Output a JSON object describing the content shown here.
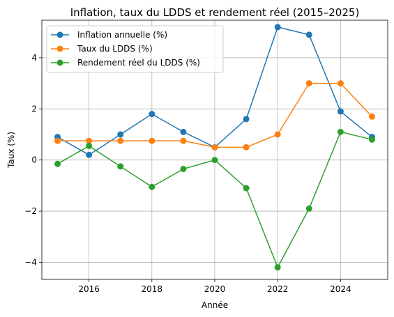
{
  "chart_data": {
    "type": "line",
    "title": "Inflation, taux du LDDS et rendement réel (2015–2025)",
    "xlabel": "Année",
    "ylabel": "Taux (%)",
    "x": [
      2015,
      2016,
      2017,
      2018,
      2019,
      2020,
      2021,
      2022,
      2023,
      2024,
      2025
    ],
    "xlim": [
      2014.5,
      2025.5
    ],
    "ylim": [
      -4.67,
      5.47
    ],
    "xticks": [
      2016,
      2018,
      2020,
      2022,
      2024
    ],
    "yticks": [
      -4,
      -2,
      0,
      2,
      4
    ],
    "xtick_labels": [
      "2016",
      "2018",
      "2020",
      "2022",
      "2024"
    ],
    "ytick_labels": [
      "−4",
      "−2",
      "0",
      "2",
      "4"
    ],
    "grid": true,
    "legend_position": "upper left",
    "series": [
      {
        "name": "Inflation annuelle (%)",
        "color": "#1f77b4",
        "values": [
          0.9,
          0.2,
          1.0,
          1.8,
          1.1,
          0.5,
          1.6,
          5.2,
          4.9,
          1.9,
          0.9
        ]
      },
      {
        "name": "Taux du LDDS (%)",
        "color": "#ff7f0e",
        "values": [
          0.75,
          0.75,
          0.75,
          0.75,
          0.75,
          0.5,
          0.5,
          1.0,
          3.0,
          3.0,
          1.7
        ]
      },
      {
        "name": "Rendement réel du LDDS (%)",
        "color": "#2ca02c",
        "values": [
          -0.15,
          0.55,
          -0.25,
          -1.05,
          -0.35,
          0.0,
          -1.1,
          -4.2,
          -1.9,
          1.1,
          0.8
        ]
      }
    ]
  }
}
